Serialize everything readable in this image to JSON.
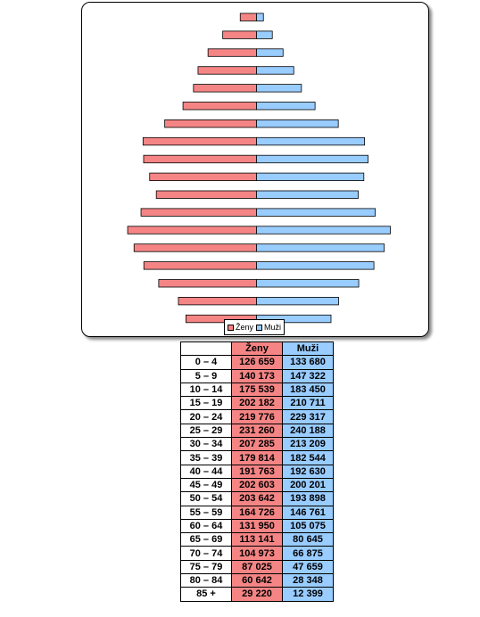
{
  "chart_data": {
    "type": "bar",
    "orientation": "horizontal-pyramid",
    "categories": [
      "0 – 4",
      "5 – 9",
      "10 – 14",
      "15 – 19",
      "20 – 24",
      "25 – 29",
      "30 – 34",
      "35 – 39",
      "40 – 44",
      "45 – 49",
      "50 – 54",
      "55 – 59",
      "60 – 64",
      "65 – 69",
      "70 – 74",
      "75 – 79",
      "80 – 84",
      "85 +"
    ],
    "series": [
      {
        "name": "Ženy",
        "color": "#f58585",
        "values": [
          126659,
          140173,
          175539,
          202182,
          219776,
          231260,
          207285,
          179814,
          191763,
          202603,
          203642,
          164726,
          131950,
          113141,
          104973,
          87025,
          60642,
          29220
        ],
        "labels": [
          "126 659",
          "140 173",
          "175 539",
          "202 182",
          "219 776",
          "231 260",
          "207 285",
          "179 814",
          "191 763",
          "202 603",
          "203 642",
          "164 726",
          "131 950",
          "113 141",
          "104 973",
          "87 025",
          "60 642",
          "29 220"
        ]
      },
      {
        "name": "Muži",
        "color": "#99ccff",
        "values": [
          133680,
          147322,
          183450,
          210711,
          229317,
          240188,
          213209,
          182544,
          192630,
          200201,
          193898,
          146761,
          105075,
          80645,
          66875,
          47659,
          28348,
          12399
        ],
        "labels": [
          "133 680",
          "147 322",
          "183 450",
          "210 711",
          "229 317",
          "240 188",
          "213 209",
          "182 544",
          "192 630",
          "200 201",
          "193 898",
          "146 761",
          "105 075",
          "80 645",
          "66 875",
          "47 659",
          "28 348",
          "12 399"
        ]
      }
    ],
    "legend": "bottom",
    "table_header": {
      "age": "",
      "women": "Ženy",
      "men": "Muži"
    }
  }
}
